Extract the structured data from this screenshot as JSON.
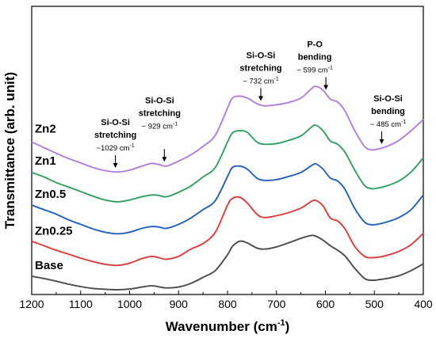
{
  "chart_data": {
    "type": "line",
    "xlabel_main": "Wavenumber (cm",
    "xlabel_sup": "-1",
    "xlabel_end": ")",
    "ylabel": "Transmittance (arb. unit)",
    "xlim": [
      1200,
      400
    ],
    "x_ticks": [
      1200,
      1100,
      1000,
      900,
      800,
      700,
      600,
      500,
      400
    ],
    "x": [
      1200,
      1175,
      1150,
      1125,
      1100,
      1075,
      1050,
      1025,
      1000,
      975,
      955,
      940,
      925,
      900,
      875,
      850,
      825,
      800,
      790,
      775,
      760,
      740,
      725,
      700,
      675,
      650,
      630,
      620,
      605,
      590,
      575,
      560,
      540,
      520,
      505,
      490,
      475,
      450,
      425,
      400
    ],
    "y_unit_note": "",
    "series": [
      {
        "name": "Base",
        "color": "#4a4a4a",
        "values": [
          0.6,
          0.5,
          0.38,
          0.25,
          0.14,
          0.06,
          0.02,
          0.0,
          0.03,
          0.12,
          0.18,
          0.13,
          0.08,
          0.12,
          0.28,
          0.55,
          0.85,
          1.55,
          1.92,
          2.15,
          2.08,
          1.85,
          1.8,
          1.9,
          2.08,
          2.28,
          2.4,
          2.38,
          2.2,
          1.95,
          1.75,
          1.5,
          0.95,
          0.5,
          0.42,
          0.45,
          0.5,
          0.62,
          0.85,
          1.15
        ]
      },
      {
        "name": "Zn0.25",
        "color": "#e03a3a",
        "values": [
          2.15,
          1.95,
          1.75,
          1.58,
          1.4,
          1.25,
          1.13,
          1.08,
          1.18,
          1.38,
          1.48,
          1.42,
          1.35,
          1.48,
          1.8,
          2.05,
          2.55,
          3.75,
          4.05,
          4.1,
          3.85,
          3.35,
          3.2,
          3.28,
          3.42,
          3.62,
          3.9,
          3.96,
          3.72,
          3.18,
          3.05,
          2.7,
          1.92,
          1.48,
          1.42,
          1.45,
          1.52,
          1.7,
          2.0,
          2.5
        ]
      },
      {
        "name": "Zn0.5",
        "color": "#1f5fc0",
        "values": [
          3.75,
          3.55,
          3.35,
          3.1,
          2.9,
          2.7,
          2.55,
          2.48,
          2.55,
          2.72,
          2.8,
          2.78,
          2.72,
          2.9,
          3.18,
          3.55,
          3.95,
          5.02,
          5.42,
          5.48,
          5.35,
          4.95,
          4.85,
          4.88,
          5.02,
          5.2,
          5.48,
          5.58,
          5.35,
          4.95,
          4.82,
          4.45,
          3.6,
          3.0,
          2.88,
          2.92,
          3.0,
          3.2,
          3.55,
          4.2
        ]
      },
      {
        "name": "Zn1",
        "color": "#2fa060",
        "values": [
          5.2,
          5.0,
          4.75,
          4.55,
          4.35,
          4.15,
          3.98,
          3.9,
          3.98,
          4.12,
          4.2,
          4.18,
          4.12,
          4.32,
          4.6,
          5.0,
          5.42,
          6.55,
          6.95,
          7.05,
          6.98,
          6.55,
          6.45,
          6.48,
          6.62,
          6.82,
          7.18,
          7.3,
          7.05,
          6.6,
          6.45,
          6.1,
          5.3,
          4.62,
          4.48,
          4.52,
          4.6,
          4.82,
          5.22,
          5.85
        ]
      },
      {
        "name": "Zn2",
        "color": "#b07ee0",
        "values": [
          6.55,
          6.3,
          6.05,
          5.82,
          5.62,
          5.42,
          5.28,
          5.22,
          5.3,
          5.48,
          5.6,
          5.55,
          5.48,
          5.7,
          5.98,
          6.35,
          6.85,
          8.05,
          8.5,
          8.58,
          8.5,
          8.25,
          8.15,
          8.2,
          8.3,
          8.5,
          8.88,
          9.02,
          8.85,
          8.45,
          8.32,
          7.92,
          7.05,
          6.35,
          6.2,
          6.25,
          6.35,
          6.62,
          7.05,
          7.55
        ]
      }
    ],
    "annotations": [
      {
        "line1": "Si-O-Si",
        "line2": "stretching",
        "note": "~1029 cm",
        "note_sup": "-1",
        "x_arrow": 1029
      },
      {
        "line1": "Si-O-Si",
        "line2": "stretching",
        "note": "~ 929 cm",
        "note_sup": "-1",
        "x_arrow": 929
      },
      {
        "line1": "Si-O-Si",
        "line2": "stretching",
        "note": "~ 732 cm",
        "note_sup": "-1",
        "x_arrow": 732
      },
      {
        "line1": "P-O",
        "line2": "bending",
        "note": "~ 599 cm",
        "note_sup": "-1",
        "x_arrow": 599
      },
      {
        "line1": "Si-O-Si",
        "line2": "bending",
        "note": "~ 485 cm",
        "note_sup": "-1",
        "x_arrow": 485
      }
    ],
    "grid": false,
    "legend": "inline labels at left"
  }
}
